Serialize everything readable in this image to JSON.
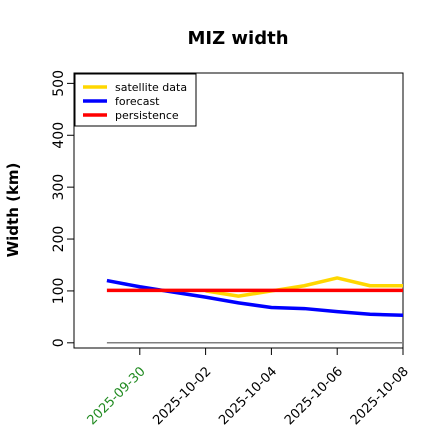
{
  "chart_data": {
    "type": "line",
    "title": "MIZ width",
    "xlabel": "",
    "ylabel": "Width (km)",
    "x": [
      "2025-09-29",
      "2025-09-30",
      "2025-10-01",
      "2025-10-02",
      "2025-10-03",
      "2025-10-04",
      "2025-10-05",
      "2025-10-06",
      "2025-10-07",
      "2025-10-08"
    ],
    "x_ticks": [
      {
        "label": "2025-09-30",
        "color": "#228b22"
      },
      {
        "label": "2025-10-02",
        "color": "#000000"
      },
      {
        "label": "2025-10-04",
        "color": "#000000"
      },
      {
        "label": "2025-10-06",
        "color": "#000000"
      },
      {
        "label": "2025-10-08",
        "color": "#000000"
      }
    ],
    "yticks": [
      0,
      100,
      200,
      300,
      400,
      500
    ],
    "ylim": [
      -10,
      520
    ],
    "xlim": [
      "2025-09-28",
      "2025-10-08"
    ],
    "grid": false,
    "legend_position": "top-left",
    "series": [
      {
        "name": "satellite data",
        "color": "#ffd700",
        "values": [
          null,
          null,
          null,
          100,
          90,
          100,
          110,
          125,
          110,
          110
        ]
      },
      {
        "name": "forecast",
        "color": "#0000ff",
        "values": [
          120,
          108,
          98,
          88,
          77,
          68,
          66,
          60,
          55,
          53
        ]
      },
      {
        "name": "persistence",
        "color": "#ff0000",
        "values": [
          101,
          101,
          101,
          101,
          101,
          101,
          101,
          101,
          101,
          101
        ]
      }
    ],
    "reference_line": {
      "value": 0,
      "color": "#808080"
    }
  }
}
